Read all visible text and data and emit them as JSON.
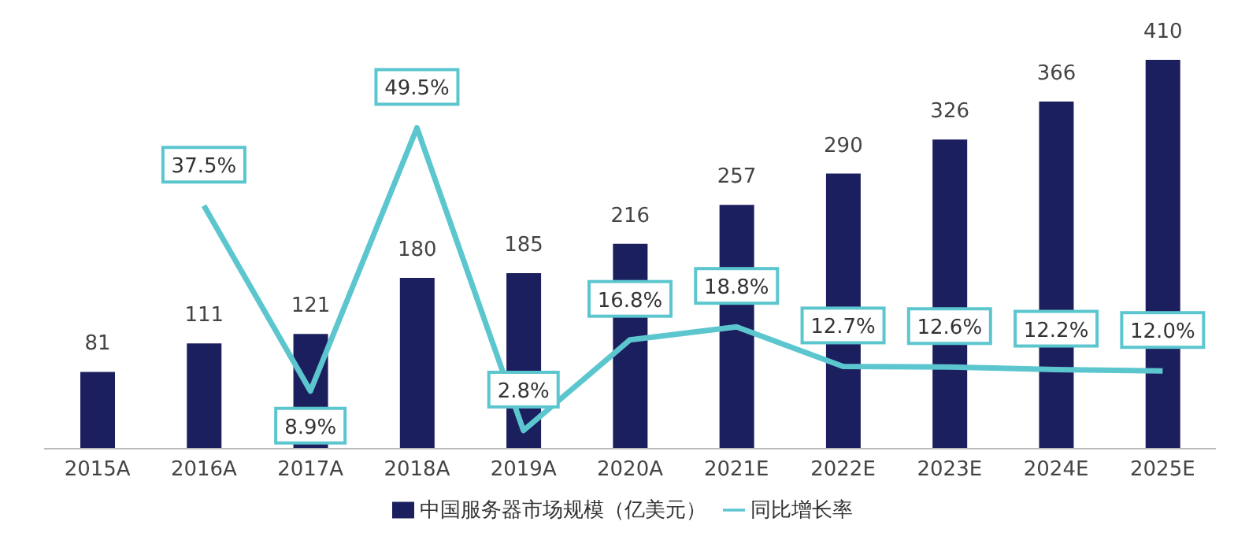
{
  "chart_data": {
    "type": "bar",
    "categories": [
      "2015A",
      "2016A",
      "2017A",
      "2018A",
      "2019A",
      "2020A",
      "2021E",
      "2022E",
      "2023E",
      "2024E",
      "2025E"
    ],
    "series": [
      {
        "name": "中国服务器市场规模（亿美元）",
        "color": "#1c1f5e",
        "values": [
          81,
          111,
          121,
          180,
          185,
          216,
          257,
          290,
          326,
          366,
          410
        ]
      },
      {
        "name": "同比增长率",
        "type": "line",
        "axis": "y2",
        "color": "#5cc6cf",
        "values": [
          null,
          37.5,
          8.9,
          49.5,
          2.8,
          16.8,
          18.8,
          12.7,
          12.6,
          12.2,
          12.0
        ],
        "value_labels": [
          null,
          "37.5%",
          "8.9%",
          "49.5%",
          "2.8%",
          "16.8%",
          "18.8%",
          "12.7%",
          "12.6%",
          "12.2%",
          "12.0%"
        ]
      }
    ],
    "data_labels": true,
    "legend": "bottom",
    "marker": "none"
  }
}
